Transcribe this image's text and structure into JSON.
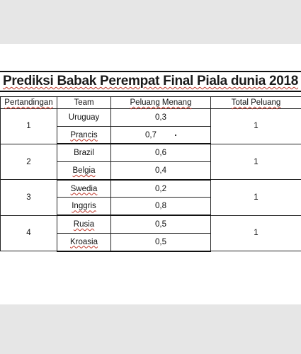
{
  "title": "Prediksi Babak Perempat Final Piala dunia 2018",
  "headers": {
    "pertandingan": "Pertandingan",
    "team": "Team",
    "peluang_menang": "Peluang Menang",
    "total_peluang": "Total Peluang"
  },
  "matches": [
    {
      "no": "1",
      "teams": [
        {
          "name": "Uruguay",
          "prob": "0,3"
        },
        {
          "name": "Prancis",
          "prob": "0,7"
        }
      ],
      "total": "1"
    },
    {
      "no": "2",
      "teams": [
        {
          "name": "Brazil",
          "prob": "0,6"
        },
        {
          "name": "Belgia",
          "prob": "0,4"
        }
      ],
      "total": "1"
    },
    {
      "no": "3",
      "teams": [
        {
          "name": "Swedia",
          "prob": "0,2"
        },
        {
          "name": "Inggris",
          "prob": "0,8"
        }
      ],
      "total": "1"
    },
    {
      "no": "4",
      "teams": [
        {
          "name": "Rusia",
          "prob": "0,5"
        },
        {
          "name": "Kroasia",
          "prob": "0,5"
        }
      ],
      "total": "1"
    }
  ]
}
